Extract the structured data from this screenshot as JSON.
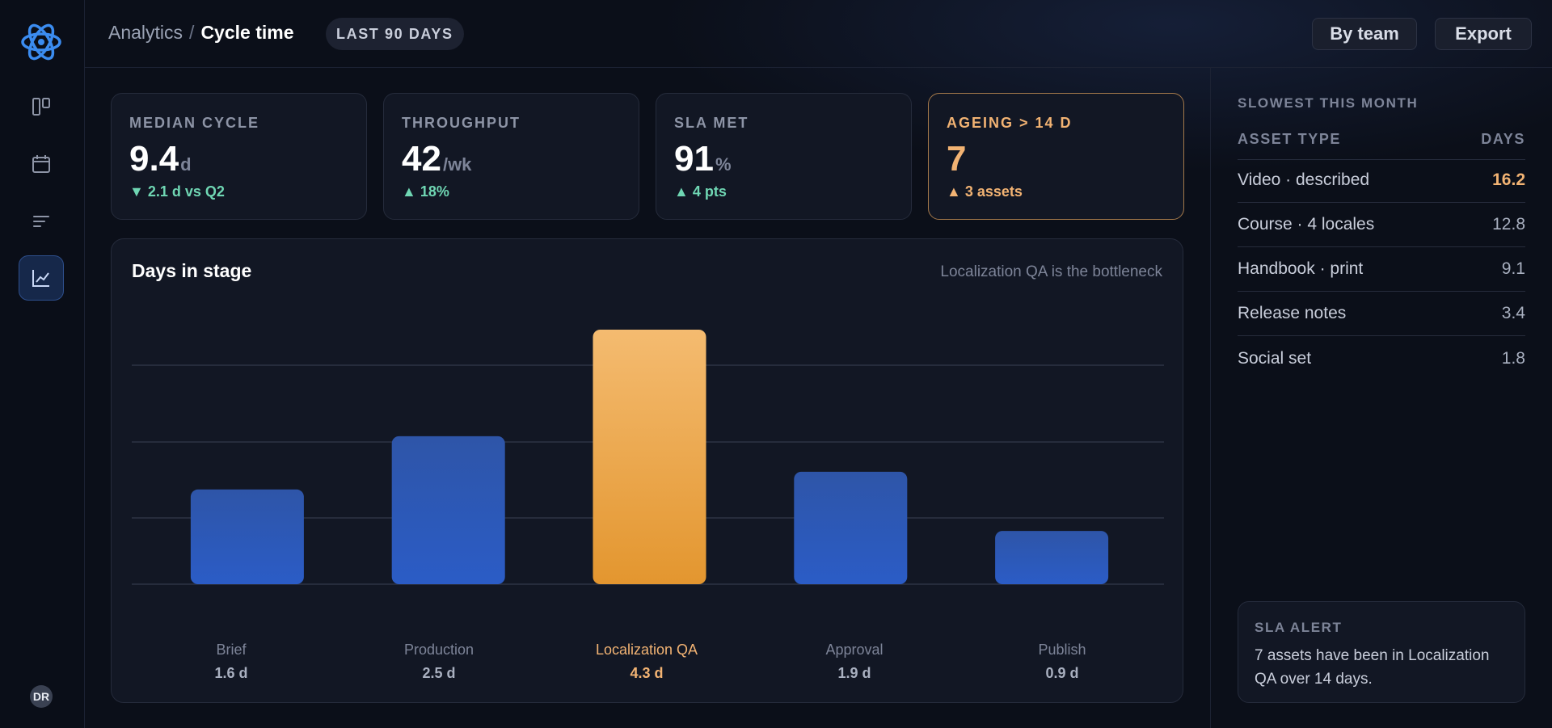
{
  "header": {
    "breadcrumb_root": "Analytics",
    "breadcrumb_sep": "/",
    "breadcrumb_current": "Cycle time",
    "range": "LAST 90 DAYS",
    "by_team_label": "By team",
    "export_label": "Export"
  },
  "rail": {
    "items": [
      "logo-icon",
      "board-icon",
      "calendar-icon",
      "list-icon",
      "chart-icon"
    ],
    "active": "chart-icon",
    "avatar": "DR"
  },
  "kpis": [
    {
      "label": "MEDIAN CYCLE",
      "value": "9.4",
      "unit": "d",
      "delta_arrow": "▼",
      "delta": "2.1 d vs Q2"
    },
    {
      "label": "THROUGHPUT",
      "value": "42",
      "unit": "/wk",
      "delta_arrow": "▲",
      "delta": "18%"
    },
    {
      "label": "SLA MET",
      "value": "91",
      "unit": "%",
      "delta_arrow": "▲",
      "delta": "4 pts"
    },
    {
      "label": "AGEING > 14 D",
      "value": "7",
      "unit": "",
      "delta_arrow": "▲",
      "delta": "3 assets"
    }
  ],
  "chart": {
    "title": "Days in stage",
    "note": "Localization QA is the bottleneck"
  },
  "chart_data": {
    "type": "bar",
    "title": "Days in stage",
    "categories": [
      "Brief",
      "Production",
      "Localization QA",
      "Approval",
      "Publish"
    ],
    "values": [
      1.6,
      2.5,
      4.3,
      1.9,
      0.9
    ],
    "value_labels": [
      "1.6 d",
      "2.5 d",
      "4.3 d",
      "1.9 d",
      "0.9 d"
    ],
    "highlight": "Localization QA",
    "ylim": [
      0,
      4.3
    ],
    "grid": true,
    "colors": {
      "normal": "#2f5fc4",
      "highlight": "#f2a94e"
    }
  },
  "side": {
    "heading": "SLOWEST THIS MONTH",
    "col_type": "ASSET TYPE",
    "col_days": "DAYS",
    "rows": [
      {
        "type": "Video · described",
        "days": "16.2"
      },
      {
        "type": "Course · 4 locales",
        "days": "12.8"
      },
      {
        "type": "Handbook · print",
        "days": "9.1"
      },
      {
        "type": "Release notes",
        "days": "3.4"
      },
      {
        "type": "Social set",
        "days": "1.8"
      }
    ],
    "alert_title": "SLA ALERT",
    "alert_body": "7 assets have been in Localization QA over 14 days."
  },
  "colors": {
    "accent": "#3b82f6",
    "warn": "#f2b373",
    "positive": "#6fd6b3",
    "bg": "#0b0f19"
  }
}
